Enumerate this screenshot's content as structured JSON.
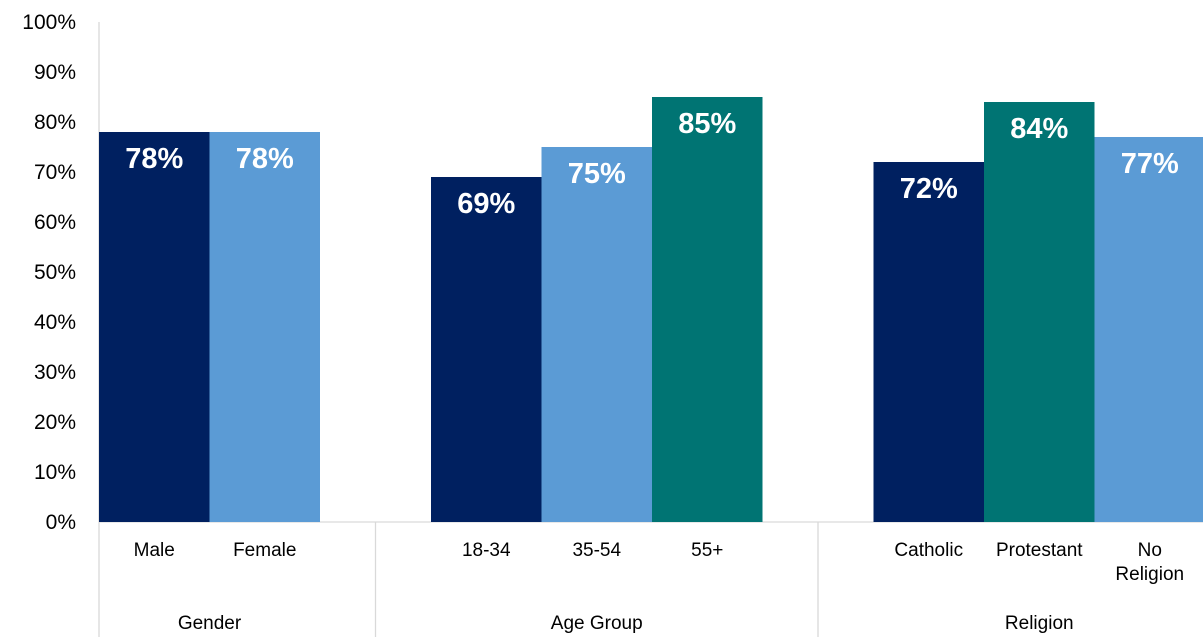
{
  "chart_data": {
    "type": "bar",
    "title": "",
    "xlabel": "",
    "ylabel": "",
    "ylim": [
      0,
      100
    ],
    "y_tick_step": 10,
    "y_tick_suffix": "%",
    "grid": false,
    "legend": "none",
    "groups": [
      {
        "name": "Gender",
        "categories": [
          "Male",
          "Female"
        ],
        "values": [
          78,
          78
        ],
        "labels": [
          "78%",
          "78%"
        ],
        "colors": [
          "#002060",
          "#5b9bd5"
        ]
      },
      {
        "name": "Age Group",
        "categories": [
          "18-34",
          "35-54",
          "55+"
        ],
        "values": [
          69,
          75,
          85
        ],
        "labels": [
          "69%",
          "75%",
          "85%"
        ],
        "colors": [
          "#002060",
          "#5b9bd5",
          "#007473"
        ]
      },
      {
        "name": "Religion",
        "categories": [
          "Catholic",
          "Protestant",
          "No Religion"
        ],
        "values": [
          72,
          84,
          77
        ],
        "labels": [
          "72%",
          "84%",
          "77%"
        ],
        "colors": [
          "#002060",
          "#007473",
          "#5b9bd5"
        ]
      }
    ]
  }
}
